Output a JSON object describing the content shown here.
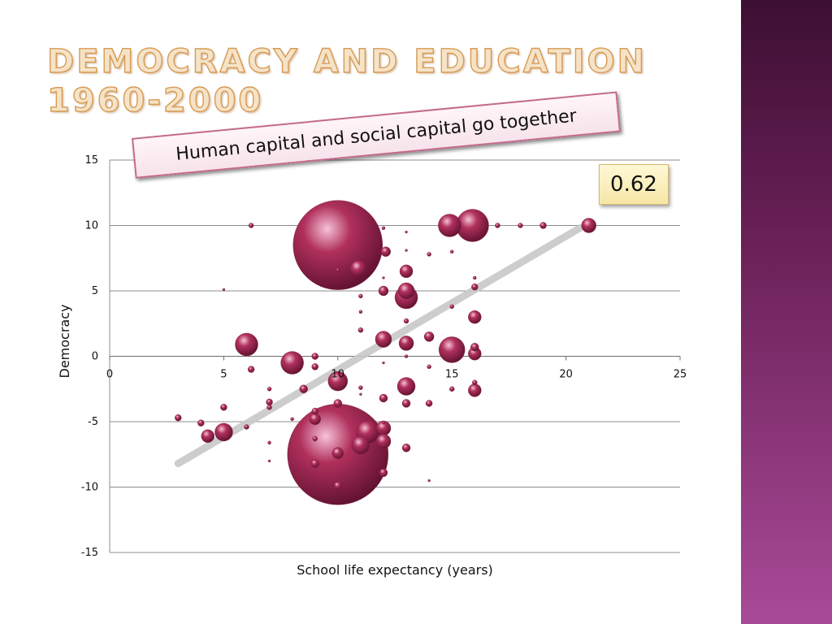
{
  "slide": {
    "title": "Democracy and Education 1960-2000",
    "banner": "Human capital and social capital go together",
    "correlation": "0.62"
  },
  "colors": {
    "bubble": "#b0305c",
    "trendline": "#c8c8c8",
    "sidebar": "#6b2158",
    "title_fill": "#f5e3c8",
    "title_outline": "#d89a52"
  },
  "chart_data": {
    "type": "scatter",
    "title": "",
    "xlabel": "School life expectancy (years)",
    "ylabel": "Democracy",
    "xlim": [
      0,
      25
    ],
    "ylim": [
      -15,
      15
    ],
    "xticks": [
      "0",
      "5",
      "10",
      "15",
      "20",
      "25"
    ],
    "yticks": [
      "15",
      "10",
      "5",
      "0",
      "-5",
      "-10",
      "-15"
    ],
    "grid": "horizontal",
    "trendline": {
      "x": [
        3,
        20.6
      ],
      "y": [
        -8.2,
        9.8
      ]
    },
    "points": [
      {
        "x": 10,
        "y": 8.5,
        "s": 55
      },
      {
        "x": 10,
        "y": -7.5,
        "s": 62
      },
      {
        "x": 15.9,
        "y": 10,
        "s": 20
      },
      {
        "x": 14.9,
        "y": 10,
        "s": 14
      },
      {
        "x": 21,
        "y": 10,
        "s": 9
      },
      {
        "x": 17,
        "y": 10,
        "s": 3
      },
      {
        "x": 18,
        "y": 10,
        "s": 3
      },
      {
        "x": 19,
        "y": 10,
        "s": 4
      },
      {
        "x": 6.2,
        "y": 10,
        "s": 3
      },
      {
        "x": 12,
        "y": 9.8,
        "s": 2
      },
      {
        "x": 13,
        "y": 9.5,
        "s": 1.5
      },
      {
        "x": 12.1,
        "y": 8,
        "s": 6
      },
      {
        "x": 13,
        "y": 8.1,
        "s": 1.5
      },
      {
        "x": 14,
        "y": 7.8,
        "s": 2.5
      },
      {
        "x": 15,
        "y": 8,
        "s": 2
      },
      {
        "x": 10.9,
        "y": 6.7,
        "s": 10
      },
      {
        "x": 10,
        "y": 6.6,
        "s": 2
      },
      {
        "x": 13,
        "y": 6.5,
        "s": 8
      },
      {
        "x": 12,
        "y": 6,
        "s": 1.5
      },
      {
        "x": 16,
        "y": 6,
        "s": 2
      },
      {
        "x": 13,
        "y": 5,
        "s": 10
      },
      {
        "x": 12,
        "y": 5,
        "s": 6
      },
      {
        "x": 13,
        "y": 4.5,
        "s": 14
      },
      {
        "x": 11,
        "y": 4.6,
        "s": 2.5
      },
      {
        "x": 16,
        "y": 5.3,
        "s": 4
      },
      {
        "x": 5,
        "y": 5.1,
        "s": 1.5
      },
      {
        "x": 11,
        "y": 3.4,
        "s": 2
      },
      {
        "x": 15,
        "y": 3.8,
        "s": 2.5
      },
      {
        "x": 16,
        "y": 3,
        "s": 8
      },
      {
        "x": 13,
        "y": 2.7,
        "s": 3
      },
      {
        "x": 11,
        "y": 2,
        "s": 3
      },
      {
        "x": 12,
        "y": 1.3,
        "s": 10
      },
      {
        "x": 13,
        "y": 1,
        "s": 9
      },
      {
        "x": 14,
        "y": 1.5,
        "s": 6
      },
      {
        "x": 15,
        "y": 0.5,
        "s": 16
      },
      {
        "x": 16,
        "y": 0.7,
        "s": 5
      },
      {
        "x": 16,
        "y": 0.2,
        "s": 8
      },
      {
        "x": 6,
        "y": 0.9,
        "s": 14
      },
      {
        "x": 8,
        "y": -0.5,
        "s": 14
      },
      {
        "x": 9,
        "y": 0,
        "s": 4
      },
      {
        "x": 9,
        "y": -0.8,
        "s": 4
      },
      {
        "x": 6.2,
        "y": -1,
        "s": 4
      },
      {
        "x": 13,
        "y": 0,
        "s": 2
      },
      {
        "x": 14,
        "y": -0.8,
        "s": 2.5
      },
      {
        "x": 12,
        "y": -0.5,
        "s": 1.5
      },
      {
        "x": 10,
        "y": -1.9,
        "s": 12
      },
      {
        "x": 11,
        "y": -2.4,
        "s": 2.5
      },
      {
        "x": 11,
        "y": -2.9,
        "s": 1.5
      },
      {
        "x": 8.5,
        "y": -2.5,
        "s": 5
      },
      {
        "x": 7,
        "y": -2.5,
        "s": 2.5
      },
      {
        "x": 13,
        "y": -2.3,
        "s": 11
      },
      {
        "x": 15,
        "y": -2.5,
        "s": 3
      },
      {
        "x": 16,
        "y": -2,
        "s": 3
      },
      {
        "x": 16,
        "y": -2.6,
        "s": 8
      },
      {
        "x": 12,
        "y": -3.2,
        "s": 5
      },
      {
        "x": 13,
        "y": -3.6,
        "s": 5
      },
      {
        "x": 14,
        "y": -3.6,
        "s": 4
      },
      {
        "x": 10,
        "y": -3.6,
        "s": 5
      },
      {
        "x": 7,
        "y": -3.5,
        "s": 4
      },
      {
        "x": 7,
        "y": -3.9,
        "s": 3
      },
      {
        "x": 5,
        "y": -3.9,
        "s": 4
      },
      {
        "x": 9,
        "y": -4.2,
        "s": 4
      },
      {
        "x": 9,
        "y": -4.8,
        "s": 7
      },
      {
        "x": 8,
        "y": -4.8,
        "s": 2
      },
      {
        "x": 12,
        "y": -5.1,
        "s": 1.5
      },
      {
        "x": 3,
        "y": -4.7,
        "s": 4
      },
      {
        "x": 4,
        "y": -5.1,
        "s": 4
      },
      {
        "x": 4.3,
        "y": -6.1,
        "s": 8
      },
      {
        "x": 5,
        "y": -5.8,
        "s": 11
      },
      {
        "x": 6,
        "y": -5.4,
        "s": 3
      },
      {
        "x": 11.3,
        "y": -5.8,
        "s": 14
      },
      {
        "x": 12,
        "y": -5.5,
        "s": 9
      },
      {
        "x": 11,
        "y": -6.8,
        "s": 11
      },
      {
        "x": 12,
        "y": -6.5,
        "s": 9
      },
      {
        "x": 13,
        "y": -7,
        "s": 5
      },
      {
        "x": 9,
        "y": -6.3,
        "s": 3
      },
      {
        "x": 7,
        "y": -6.6,
        "s": 2
      },
      {
        "x": 7,
        "y": -8,
        "s": 1.5
      },
      {
        "x": 10,
        "y": -7.4,
        "s": 7
      },
      {
        "x": 9,
        "y": -8.2,
        "s": 5
      },
      {
        "x": 12,
        "y": -8.9,
        "s": 5
      },
      {
        "x": 14,
        "y": -9.5,
        "s": 1.5
      },
      {
        "x": 10,
        "y": -9.9,
        "s": 5
      }
    ]
  }
}
